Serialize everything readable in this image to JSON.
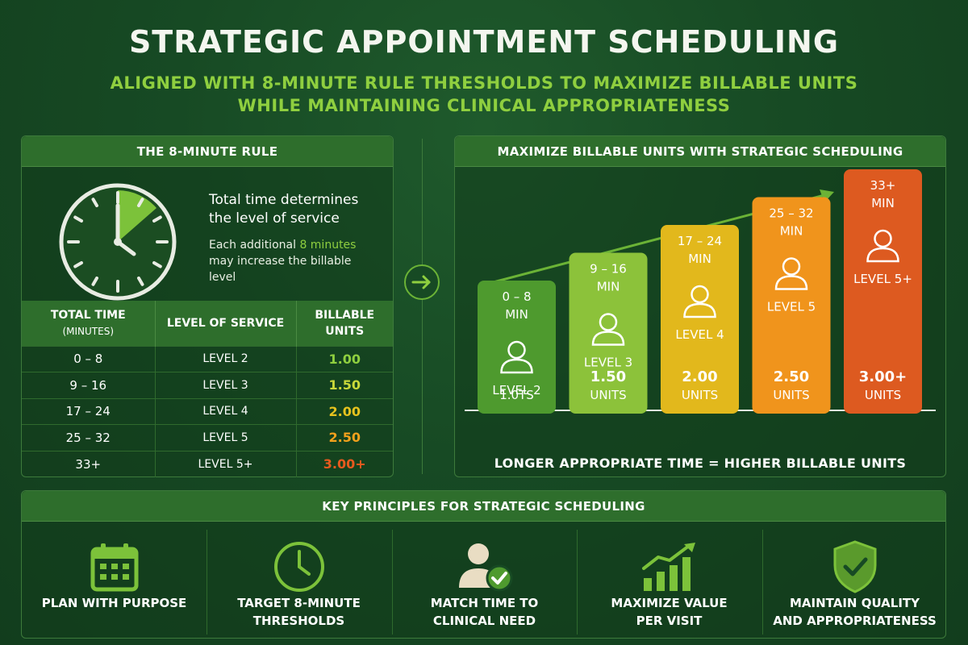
{
  "title": "STRATEGIC APPOINTMENT SCHEDULING",
  "subtitle_line1": "ALIGNED WITH 8-MINUTE RULE THRESHOLDS TO MAXIMIZE BILLABLE UNITS",
  "subtitle_line2": "WHILE MAINTAINING CLINICAL APPROPRIATENESS",
  "left_panel": {
    "header": "THE 8-MINUTE RULE",
    "text_main": "Total time determines the level of service",
    "text_sub_before": "Each additional ",
    "text_sub_highlight": "8 minutes",
    "text_sub_after": " may increase the billable level",
    "table": {
      "headers": [
        {
          "main": "TOTAL TIME",
          "sub": "(MINUTES)"
        },
        {
          "main": "LEVEL OF SERVICE",
          "sub": ""
        },
        {
          "main": "BILLABLE",
          "sub": "UNITS"
        }
      ],
      "rows": [
        {
          "time": "0 – 8",
          "level": "LEVEL 2",
          "units": "1.00",
          "color": "#8fcf3f"
        },
        {
          "time": "9 – 16",
          "level": "LEVEL 3",
          "units": "1.50",
          "color": "#c9d83a"
        },
        {
          "time": "17 – 24",
          "level": "LEVEL 4",
          "units": "2.00",
          "color": "#e6c21e"
        },
        {
          "time": "25 – 32",
          "level": "LEVEL 5",
          "units": "2.50",
          "color": "#f2a11c"
        },
        {
          "time": "33+",
          "level": "LEVEL 5+",
          "units": "3.00+",
          "color": "#e85a1e"
        }
      ]
    }
  },
  "right_panel": {
    "header": "MAXIMIZE BILLABLE UNITS WITH STRATEGIC SCHEDULING",
    "caption": "LONGER APPROPRIATE TIME = HIGHER BILLABLE UNITS"
  },
  "chart_data": {
    "type": "bar",
    "categories": [
      "0 – 8 MIN",
      "9 – 16 MIN",
      "17 – 24 MIN",
      "25 – 32 MIN",
      "33+ MIN"
    ],
    "values": [
      1.0,
      1.5,
      2.0,
      2.5,
      3.0
    ],
    "bars": [
      {
        "range_l1": "0 – 8",
        "range_l2": "MIN",
        "level": "LEVEL 2",
        "units_l1": "",
        "units_l2": "1.0TS",
        "color": "#4e9a2e"
      },
      {
        "range_l1": "9 – 16",
        "range_l2": "MIN",
        "level": "LEVEL 3",
        "units_l1": "1.50",
        "units_l2": "UNITS",
        "color": "#8cc23a"
      },
      {
        "range_l1": "17 – 24",
        "range_l2": "MIN",
        "level": "LEVEL 4",
        "units_l1": "2.00",
        "units_l2": "UNITS",
        "color": "#e2b81c"
      },
      {
        "range_l1": "25 – 32",
        "range_l2": "MIN",
        "level": "LEVEL 5",
        "units_l1": "2.50",
        "units_l2": "UNITS",
        "color": "#f0941c"
      },
      {
        "range_l1": "33+",
        "range_l2": "MIN",
        "level": "LEVEL 5+",
        "units_l1": "3.00+",
        "units_l2": "UNITS",
        "color": "#dd5a20"
      }
    ],
    "title": "MAXIMIZE BILLABLE UNITS WITH STRATEGIC SCHEDULING",
    "xlabel": "",
    "ylabel": ""
  },
  "bottom_panel": {
    "header": "KEY PRINCIPLES FOR STRATEGIC SCHEDULING",
    "principles": [
      {
        "label": "PLAN WITH PURPOSE",
        "icon": "calendar-icon"
      },
      {
        "label": "TARGET 8-MINUTE\nTHRESHOLDS",
        "icon": "clock-icon"
      },
      {
        "label": "MATCH TIME TO\nCLINICAL NEED",
        "icon": "person-check-icon"
      },
      {
        "label": "MAXIMIZE VALUE\nPER VISIT",
        "icon": "growth-chart-icon"
      },
      {
        "label": "MAINTAIN QUALITY\nAND APPROPRIATENESS",
        "icon": "shield-check-icon"
      }
    ]
  }
}
